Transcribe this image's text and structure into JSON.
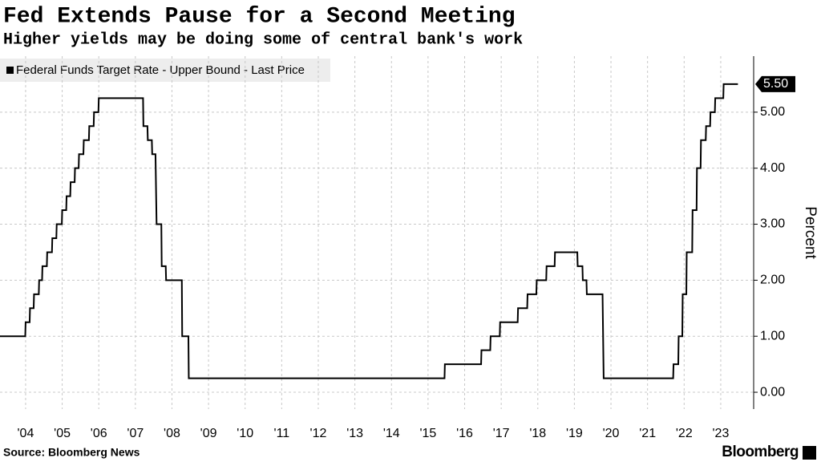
{
  "chart_data": {
    "type": "line",
    "title": "Fed Extends Pause for a Second Meeting",
    "subtitle": "Higher yields may be doing some of central bank's work",
    "y_label": "Percent",
    "source": "Source: Bloomberg News",
    "brand": "Bloomberg",
    "x": [
      2003.8,
      2004.49,
      2004.5,
      2004.61,
      2004.62,
      2004.72,
      2004.73,
      2004.86,
      2004.87,
      2004.95,
      2004.96,
      2005.08,
      2005.09,
      2005.22,
      2005.23,
      2005.34,
      2005.35,
      2005.49,
      2005.5,
      2005.61,
      2005.62,
      2005.72,
      2005.73,
      2005.84,
      2005.85,
      2005.95,
      2005.96,
      2006.08,
      2006.09,
      2006.23,
      2006.24,
      2006.36,
      2006.37,
      2006.49,
      2006.5,
      2007.71,
      2007.72,
      2007.83,
      2007.84,
      2007.95,
      2007.96,
      2008.05,
      2008.08,
      2008.21,
      2008.22,
      2008.33,
      2008.34,
      2008.77,
      2008.78,
      2008.95,
      2008.96,
      2015.95,
      2015.96,
      2016.95,
      2016.96,
      2017.2,
      2017.21,
      2017.46,
      2017.47,
      2017.95,
      2017.96,
      2018.21,
      2018.22,
      2018.46,
      2018.47,
      2018.73,
      2018.74,
      2018.96,
      2018.97,
      2019.58,
      2019.59,
      2019.72,
      2019.73,
      2019.83,
      2019.84,
      2020.27,
      2020.3,
      2022.2,
      2022.21,
      2022.34,
      2022.35,
      2022.45,
      2022.46,
      2022.56,
      2022.57,
      2022.72,
      2022.73,
      2022.84,
      2022.85,
      2022.95,
      2022.96,
      2023.09,
      2023.1,
      2023.21,
      2023.22,
      2023.34,
      2023.35,
      2023.57,
      2023.58,
      2023.97
    ],
    "series": [
      {
        "name": "Federal Funds Target Rate - Upper Bound - Last Price",
        "color": "#000000",
        "values": [
          1.0,
          1.0,
          1.25,
          1.25,
          1.5,
          1.5,
          1.75,
          1.75,
          2.0,
          2.0,
          2.25,
          2.25,
          2.5,
          2.5,
          2.75,
          2.75,
          3.0,
          3.0,
          3.25,
          3.25,
          3.5,
          3.5,
          3.75,
          3.75,
          4.0,
          4.0,
          4.25,
          4.25,
          4.5,
          4.5,
          4.75,
          4.75,
          5.0,
          5.0,
          5.25,
          5.25,
          4.75,
          4.75,
          4.5,
          4.5,
          4.25,
          4.25,
          3.0,
          3.0,
          2.25,
          2.25,
          2.0,
          2.0,
          1.0,
          1.0,
          0.25,
          0.25,
          0.5,
          0.5,
          0.75,
          0.75,
          1.0,
          1.0,
          1.25,
          1.25,
          1.5,
          1.5,
          1.75,
          1.75,
          2.0,
          2.0,
          2.25,
          2.25,
          2.5,
          2.5,
          2.25,
          2.25,
          2.0,
          2.0,
          1.75,
          1.75,
          0.25,
          0.25,
          0.5,
          0.5,
          1.0,
          1.0,
          1.75,
          1.75,
          2.5,
          2.5,
          3.25,
          3.25,
          4.0,
          4.0,
          4.5,
          4.5,
          4.75,
          4.75,
          5.0,
          5.0,
          5.25,
          5.25,
          5.5,
          5.5
        ]
      }
    ],
    "last_label": {
      "value": 5.5,
      "label": "5.50"
    },
    "xlim": [
      2003.8,
      2024.4
    ],
    "xticks": [
      {
        "value": 2004.5,
        "label": "'04"
      },
      {
        "value": 2005.5,
        "label": "'05"
      },
      {
        "value": 2006.5,
        "label": "'06"
      },
      {
        "value": 2007.5,
        "label": "'07"
      },
      {
        "value": 2008.5,
        "label": "'08"
      },
      {
        "value": 2009.5,
        "label": "'09"
      },
      {
        "value": 2010.5,
        "label": "'10"
      },
      {
        "value": 2011.5,
        "label": "'11"
      },
      {
        "value": 2012.5,
        "label": "'12"
      },
      {
        "value": 2013.5,
        "label": "'13"
      },
      {
        "value": 2014.5,
        "label": "'14"
      },
      {
        "value": 2015.5,
        "label": "'15"
      },
      {
        "value": 2016.5,
        "label": "'16"
      },
      {
        "value": 2017.5,
        "label": "'17"
      },
      {
        "value": 2018.5,
        "label": "'18"
      },
      {
        "value": 2019.5,
        "label": "'19"
      },
      {
        "value": 2020.5,
        "label": "'20"
      },
      {
        "value": 2021.5,
        "label": "'21"
      },
      {
        "value": 2022.5,
        "label": "'22"
      },
      {
        "value": 2023.5,
        "label": "'23"
      }
    ],
    "ylim": [
      -0.3,
      6.0
    ],
    "yticks": [
      {
        "value": 0,
        "label": "0.00"
      },
      {
        "value": 1,
        "label": "1.00"
      },
      {
        "value": 2,
        "label": "2.00"
      },
      {
        "value": 3,
        "label": "3.00"
      },
      {
        "value": 4,
        "label": "4.00"
      },
      {
        "value": 5,
        "label": "5.00"
      }
    ],
    "grid": true,
    "legend": "top-left"
  }
}
